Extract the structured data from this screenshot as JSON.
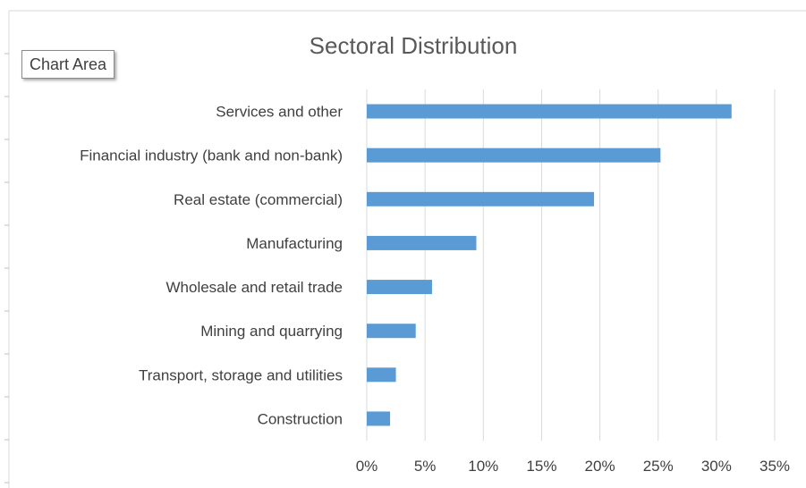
{
  "tooltip": {
    "label": "Chart Area"
  },
  "chart_data": {
    "type": "bar",
    "orientation": "horizontal",
    "title": "Sectoral Distribution",
    "categories": [
      "Services and other",
      "Financial industry (bank and non-bank)",
      "Real estate (commercial)",
      "Manufacturing",
      "Wholesale and retail trade",
      "Mining and quarrying",
      "Transport, storage and utilities",
      "Construction"
    ],
    "values": [
      31.3,
      25.2,
      19.5,
      9.4,
      5.6,
      4.2,
      2.5,
      2.0
    ],
    "xlim": [
      0,
      35
    ],
    "xticks": [
      0,
      5,
      10,
      15,
      20,
      25,
      30,
      35
    ],
    "xtick_labels": [
      "0%",
      "5%",
      "10%",
      "15%",
      "20%",
      "25%",
      "30%",
      "35%"
    ],
    "grid": "vertical",
    "legend": "none",
    "colors": {
      "bar": "#5b9bd5",
      "grid": "#d9d9d9",
      "text": "#404040",
      "title": "#595959"
    }
  }
}
